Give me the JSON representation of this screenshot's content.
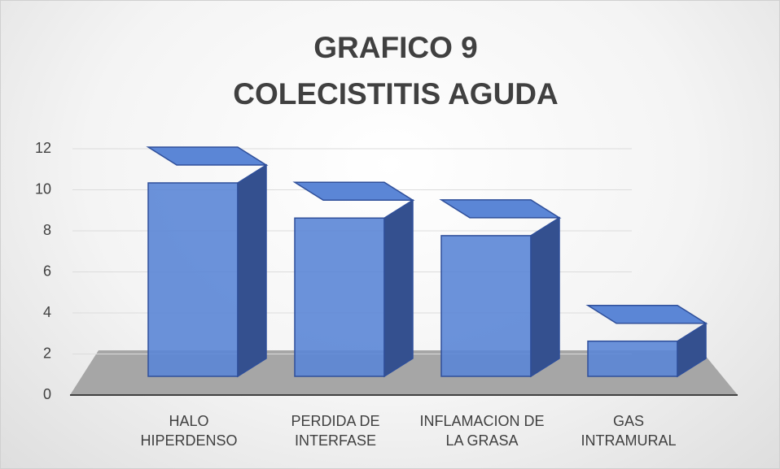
{
  "chart_data": {
    "type": "bar3d",
    "title": "GRAFICO 9",
    "subtitle": "COLECISTITIS AGUDA",
    "categories": [
      "HALO HIPERDENSO",
      "PERDIDA DE INTERFASE",
      "INFLAMACION DE LA GRASA",
      "GAS INTRAMURAL"
    ],
    "values": [
      11,
      9,
      8,
      2
    ],
    "color": "#5b86d6",
    "ylim": [
      0,
      12
    ],
    "yticks": [
      0,
      2,
      4,
      6,
      8,
      10,
      12
    ],
    "grid": true
  }
}
